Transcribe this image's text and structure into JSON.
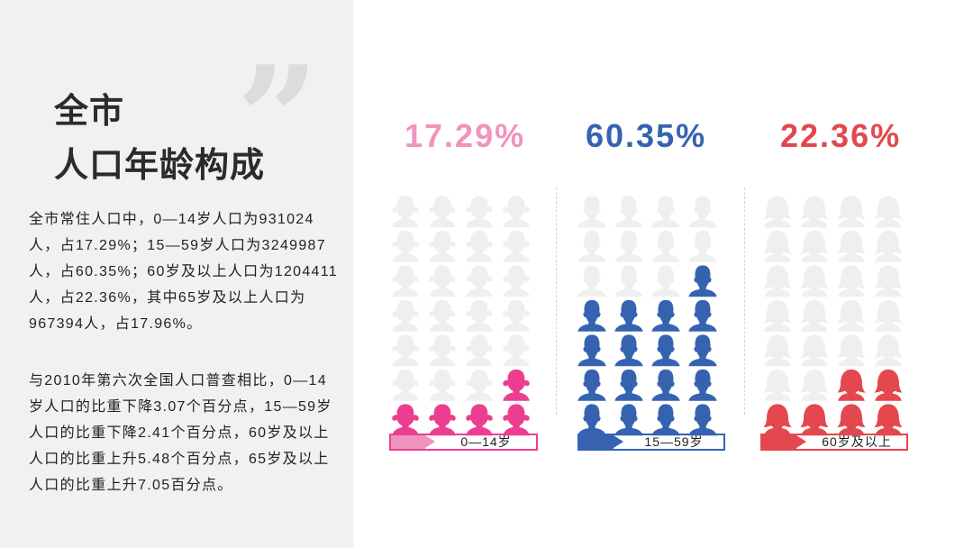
{
  "title": {
    "line1": "全市",
    "line2": "人口年龄构成"
  },
  "quote": "”",
  "paragraph1": "全市常住人口中，0—14岁人口为931024人，占17.29%；15—59岁人口为3249987人，占60.35%；60岁及以上人口为1204411人，占22.36%，其中65岁及以上人口为967394人，占17.96%。",
  "paragraph2": "与2010年第六次全国人口普查相比，0—14岁人口的比重下降3.07个百分点，15—59岁人口的比重下降2.41个百分点，60岁及以上人口的比重上升5.48个百分点，65岁及以上人口的比重上升7.05百分点。",
  "colors": {
    "child": "#ec3e90",
    "adult": "#3563b0",
    "senior": "#e4474e",
    "empty": "#efefef"
  },
  "chart_data": {
    "type": "pictogram",
    "icons_per_group": 28,
    "grid": {
      "columns": 4,
      "rows": 7
    },
    "categories": [
      "0—14岁",
      "15—59岁",
      "60岁及以上"
    ],
    "values": [
      17.29,
      60.35,
      22.36
    ],
    "labels": [
      "17.29%",
      "60.35%",
      "22.36%"
    ],
    "filled_icons": [
      5,
      17,
      6
    ],
    "icon_types": [
      "child-icon",
      "adult-icon",
      "senior-icon"
    ],
    "label_colors": [
      "#f093bd",
      "#3563b0",
      "#e4474e"
    ],
    "unit": "%"
  }
}
